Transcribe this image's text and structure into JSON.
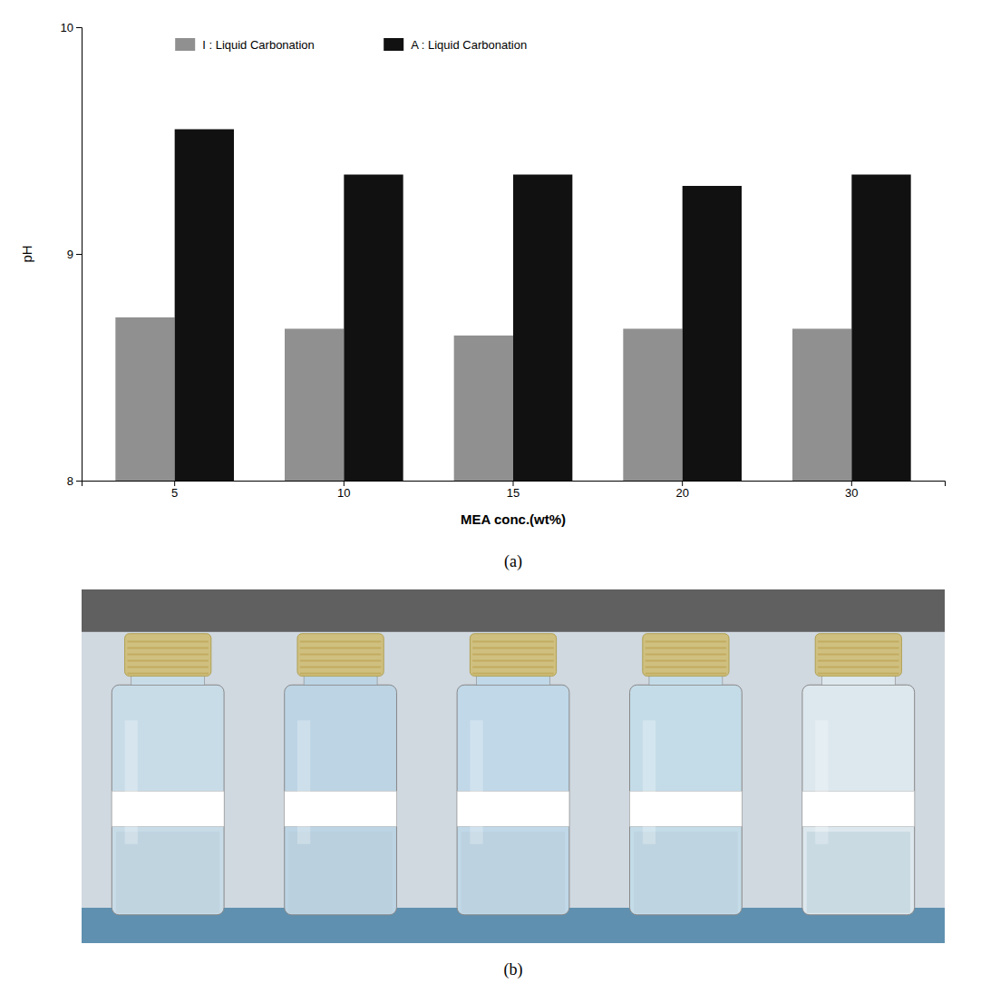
{
  "chart_data": {
    "type": "bar",
    "categories": [
      "5",
      "10",
      "15",
      "20",
      "30"
    ],
    "series": [
      {
        "name": "I : Liquid Carbonation",
        "color": "#909090",
        "values": [
          8.72,
          8.67,
          8.64,
          8.67,
          8.67
        ]
      },
      {
        "name": "A : Liquid Carbonation",
        "color": "#111111",
        "values": [
          9.55,
          9.35,
          9.35,
          9.3,
          9.35
        ]
      }
    ],
    "xlabel": "MEA conc.(wt%)",
    "ylabel": "pH",
    "ylim": [
      8.0,
      10.0
    ],
    "yticks": [
      8,
      9,
      10
    ],
    "legend": "upper left",
    "annotations": [
      "(a)",
      "(b)"
    ]
  }
}
